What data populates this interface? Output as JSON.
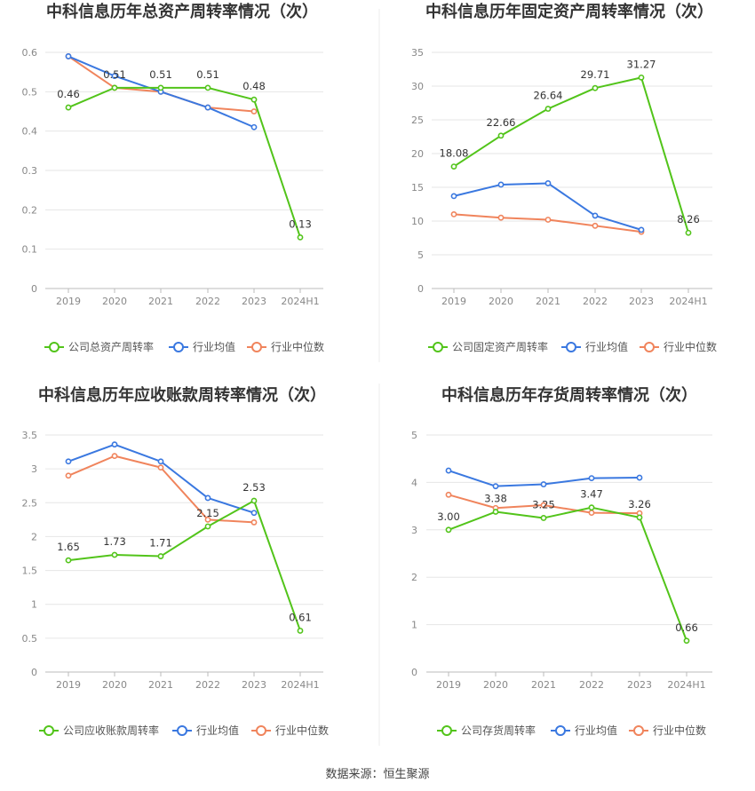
{
  "source": "数据来源：恒生聚源",
  "colors": {
    "company": "#52c41a",
    "avg": "#3a78e0",
    "median": "#f0845c",
    "grid": "#e6e6e6",
    "axis": "#bbbbbb"
  },
  "chart_data": [
    {
      "type": "line",
      "title": "中科信息历年总资产周转率情况（次）",
      "categories": [
        "2019",
        "2020",
        "2021",
        "2022",
        "2023",
        "2024H1"
      ],
      "ylim": [
        0,
        0.6
      ],
      "yticks": [
        "0",
        "0.1",
        "0.2",
        "0.3",
        "0.4",
        "0.5",
        "0.6"
      ],
      "grid": true,
      "legend": "bottom",
      "series": [
        {
          "name": "公司总资产周转率",
          "role": "company",
          "values": [
            0.46,
            0.51,
            0.51,
            0.51,
            0.48,
            0.13
          ],
          "labels": [
            "0.46",
            "0.51",
            "0.51",
            "0.51",
            "0.48",
            "0.13"
          ]
        },
        {
          "name": "行业均值",
          "role": "avg",
          "values": [
            0.59,
            0.54,
            0.5,
            0.46,
            0.41,
            null
          ]
        },
        {
          "name": "行业中位数",
          "role": "median",
          "values": [
            0.59,
            0.51,
            0.5,
            0.46,
            0.45,
            null
          ]
        }
      ]
    },
    {
      "type": "line",
      "title": "中科信息历年固定资产周转率情况（次）",
      "categories": [
        "2019",
        "2020",
        "2021",
        "2022",
        "2023",
        "2024H1"
      ],
      "ylim": [
        0,
        35
      ],
      "yticks": [
        "0",
        "5",
        "10",
        "15",
        "20",
        "25",
        "30",
        "35"
      ],
      "grid": true,
      "legend": "bottom",
      "series": [
        {
          "name": "公司固定资产周转率",
          "role": "company",
          "values": [
            18.08,
            22.66,
            26.64,
            29.71,
            31.27,
            8.26
          ],
          "labels": [
            "18.08",
            "22.66",
            "26.64",
            "29.71",
            "31.27",
            "8.26"
          ]
        },
        {
          "name": "行业均值",
          "role": "avg",
          "values": [
            13.7,
            15.4,
            15.6,
            10.8,
            8.7,
            null
          ]
        },
        {
          "name": "行业中位数",
          "role": "median",
          "values": [
            11.0,
            10.5,
            10.2,
            9.3,
            8.4,
            null
          ]
        }
      ]
    },
    {
      "type": "line",
      "title": "中科信息历年应收账款周转率情况（次）",
      "categories": [
        "2019",
        "2020",
        "2021",
        "2022",
        "2023",
        "2024H1"
      ],
      "ylim": [
        0,
        3.5
      ],
      "yticks": [
        "0",
        "0.5",
        "1",
        "1.5",
        "2",
        "2.5",
        "3",
        "3.5"
      ],
      "grid": true,
      "legend": "bottom",
      "series": [
        {
          "name": "公司应收账款周转率",
          "role": "company",
          "values": [
            1.65,
            1.73,
            1.71,
            2.15,
            2.53,
            0.61
          ],
          "labels": [
            "1.65",
            "1.73",
            "1.71",
            "2.15",
            "2.53",
            "0.61"
          ]
        },
        {
          "name": "行业均值",
          "role": "avg",
          "values": [
            3.11,
            3.36,
            3.11,
            2.57,
            2.35,
            null
          ]
        },
        {
          "name": "行业中位数",
          "role": "median",
          "values": [
            2.9,
            3.19,
            3.02,
            2.25,
            2.21,
            null
          ]
        }
      ]
    },
    {
      "type": "line",
      "title": "中科信息历年存货周转率情况（次）",
      "categories": [
        "2019",
        "2020",
        "2021",
        "2022",
        "2023",
        "2024H1"
      ],
      "ylim": [
        0,
        5
      ],
      "yticks": [
        "0",
        "1",
        "2",
        "3",
        "4",
        "5"
      ],
      "grid": true,
      "legend": "bottom",
      "series": [
        {
          "name": "公司存货周转率",
          "role": "company",
          "values": [
            3.0,
            3.38,
            3.25,
            3.47,
            3.26,
            0.66
          ],
          "labels": [
            "3.00",
            "3.38",
            "3.25",
            "3.47",
            "3.26",
            "0.66"
          ]
        },
        {
          "name": "行业均值",
          "role": "avg",
          "values": [
            4.25,
            3.92,
            3.96,
            4.09,
            4.1,
            null
          ]
        },
        {
          "name": "行业中位数",
          "role": "median",
          "values": [
            3.74,
            3.46,
            3.52,
            3.36,
            3.35,
            null
          ]
        }
      ]
    }
  ]
}
